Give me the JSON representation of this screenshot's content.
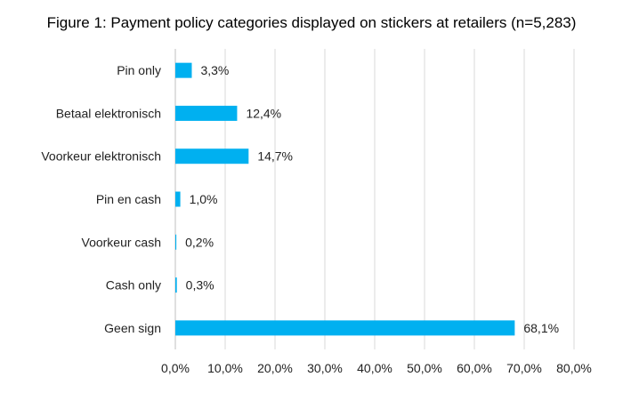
{
  "chart_data": {
    "type": "bar",
    "orientation": "horizontal",
    "title": "Figure 1: Payment policy categories displayed on stickers at retailers (n=5,283)",
    "categories": [
      "Pin only",
      "Betaal elektronisch",
      "Voorkeur elektronisch",
      "Pin en cash",
      "Voorkeur cash",
      "Cash only",
      "Geen sign"
    ],
    "values": [
      3.3,
      12.4,
      14.7,
      1.0,
      0.2,
      0.3,
      68.1
    ],
    "data_labels": [
      "3,3%",
      "12,4%",
      "14,7%",
      "1,0%",
      "0,2%",
      "0,3%",
      "68,1%"
    ],
    "xlim": [
      0,
      80
    ],
    "xticks": [
      0,
      10,
      20,
      30,
      40,
      50,
      60,
      70,
      80
    ],
    "xtick_labels": [
      "0,0%",
      "10,0%",
      "20,0%",
      "30,0%",
      "40,0%",
      "50,0%",
      "60,0%",
      "70,0%",
      "80,0%"
    ],
    "xlabel": "",
    "ylabel": "",
    "grid": true,
    "legend": "none",
    "bar_color": "#00b0f0"
  }
}
